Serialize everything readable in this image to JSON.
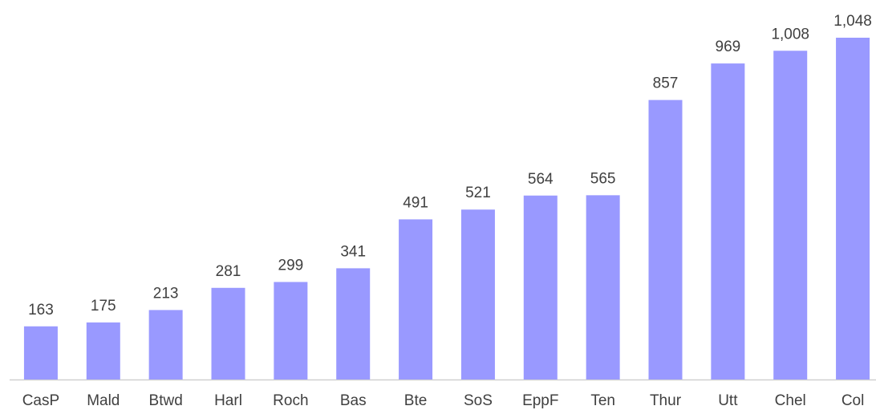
{
  "chart_data": {
    "type": "bar",
    "categories": [
      "CasP",
      "Mald",
      "Btwd",
      "Harl",
      "Roch",
      "Bas",
      "Bte",
      "SoS",
      "EppF",
      "Ten",
      "Thur",
      "Utt",
      "Chel",
      "Col"
    ],
    "values": [
      163,
      175,
      213,
      281,
      299,
      341,
      491,
      521,
      564,
      565,
      857,
      969,
      1008,
      1048
    ],
    "value_labels": [
      "163",
      "175",
      "213",
      "281",
      "299",
      "341",
      "491",
      "521",
      "564",
      "565",
      "857",
      "969",
      "1,008",
      "1,048"
    ],
    "color": "#9999ff"
  }
}
